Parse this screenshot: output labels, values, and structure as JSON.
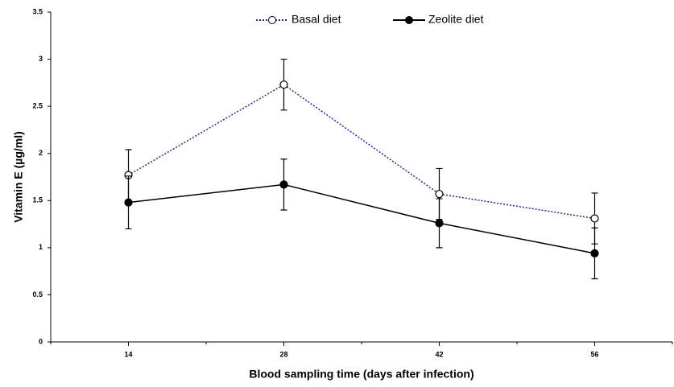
{
  "chart_data": {
    "type": "line",
    "xlabel": "Blood sampling time (days after infection)",
    "ylabel": "Vitamin E  (µg/ml)",
    "categories": [
      "14",
      "28",
      "42",
      "56"
    ],
    "ylim": [
      0,
      3.5
    ],
    "yticks": [
      0,
      0.5,
      1,
      1.5,
      2,
      2.5,
      3,
      3.5
    ],
    "legend": "top",
    "series": [
      {
        "name": "Basal diet",
        "color": "#1c2a8c",
        "line_style": "dotted",
        "marker": "hollow",
        "values": [
          1.77,
          2.73,
          1.57,
          1.31
        ],
        "errors": [
          0.27,
          0.27,
          0.27,
          0.27
        ]
      },
      {
        "name": "Zeolite diet",
        "color": "#000000",
        "line_style": "solid",
        "marker": "filled",
        "values": [
          1.48,
          1.67,
          1.26,
          0.94
        ],
        "errors": [
          0.28,
          0.27,
          0.26,
          0.27
        ]
      }
    ]
  }
}
